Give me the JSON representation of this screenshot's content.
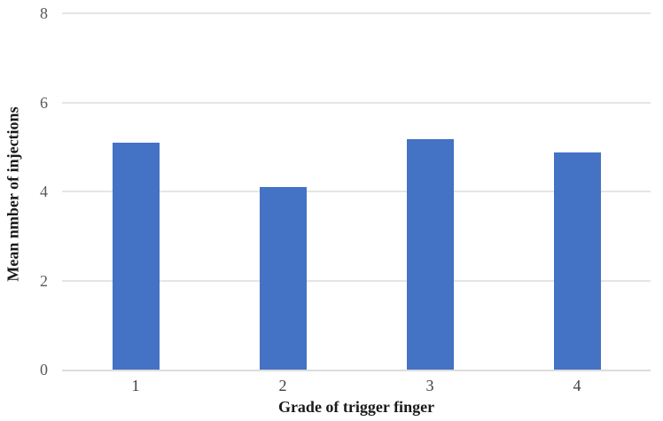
{
  "chart_data": {
    "type": "bar",
    "categories": [
      "1",
      "2",
      "3",
      "4"
    ],
    "values": [
      5.1,
      4.1,
      5.17,
      4.88
    ],
    "title": "",
    "xlabel": "Grade of trigger finger",
    "ylabel": "Mean nmber of injections",
    "ylim": [
      0,
      8
    ],
    "yticks": [
      0,
      2,
      4,
      6,
      8
    ],
    "grid": true,
    "legend": false,
    "bar_color": "#4472C4",
    "gridline_color": "#E5E5E5",
    "axis_line_color": "#DCDCDC",
    "ytick_label_color": "#595959",
    "xtick_label_color": "#404040",
    "axis_title_color": "#1a1a1a"
  }
}
